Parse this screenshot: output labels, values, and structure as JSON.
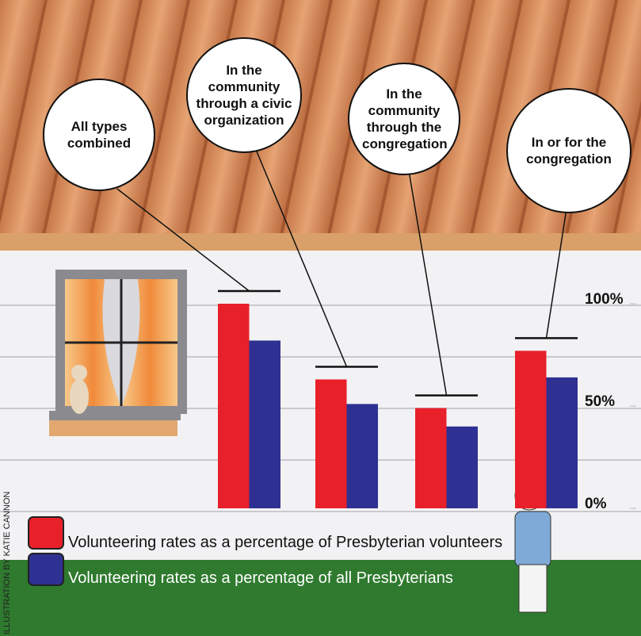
{
  "chart_data": {
    "type": "bar",
    "categories": [
      "All types combined",
      "In the community through a civic organization",
      "In the community through the congregation",
      "In or for the congregation"
    ],
    "series": [
      {
        "name": "Volunteering rates as a percentage of Presbyterian volunteers",
        "color": "#e8202a",
        "values": [
          100,
          63,
          49,
          77
        ]
      },
      {
        "name": "Volunteering rates as a percentage of all Presbyterians",
        "color": "#2e3192",
        "values": [
          82,
          51,
          40,
          64
        ]
      }
    ],
    "ylim": [
      0,
      100
    ],
    "yticks": [
      {
        "value": 0,
        "label": "0%"
      },
      {
        "value": 50,
        "label": "50%"
      },
      {
        "value": 100,
        "label": "100%"
      }
    ],
    "credit": "ILLUSTRATION BY KATIE CANNON"
  }
}
